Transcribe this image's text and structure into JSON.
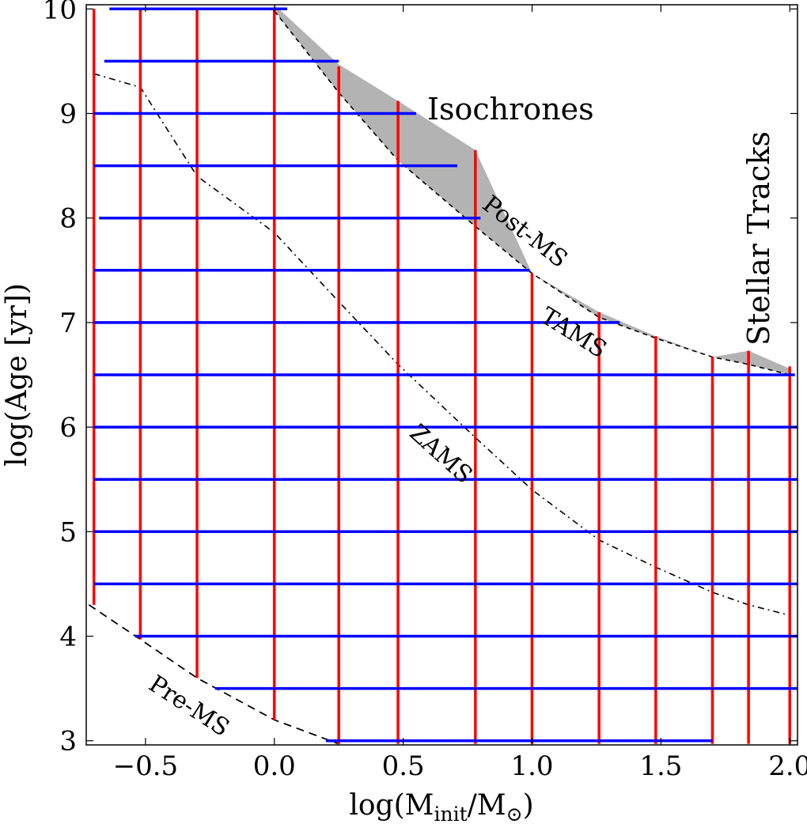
{
  "chart_data": {
    "type": "line",
    "xlabel": "log(M",
    "xlabel_sub": "init",
    "xlabel_mid": "/M",
    "xlabel_sun": "⊙",
    "xlabel_end": ")",
    "ylabel": "log(Age [yr])",
    "xlim": [
      -0.73,
      2.03
    ],
    "ylim": [
      2.96,
      10.04
    ],
    "xticks": [
      -0.5,
      0.0,
      0.5,
      1.0,
      1.5,
      2.0
    ],
    "xtick_labels": [
      "−0.5",
      "0.0",
      "0.5",
      "1.0",
      "1.5",
      "2.0"
    ],
    "yticks": [
      3,
      4,
      5,
      6,
      7,
      8,
      9,
      10
    ],
    "ytick_labels": [
      "3",
      "4",
      "5",
      "6",
      "7",
      "8",
      "9",
      "10"
    ],
    "isochrones": {
      "label": "Isochrones",
      "color": "#0000ff",
      "lines": [
        {
          "age": 10.0,
          "x0": -0.64,
          "x1": 0.05
        },
        {
          "age": 9.5,
          "x0": -0.66,
          "x1": 0.25
        },
        {
          "age": 9.0,
          "x0": -0.7,
          "x1": 0.55
        },
        {
          "age": 8.5,
          "x0": -0.7,
          "x1": 0.71
        },
        {
          "age": 8.0,
          "x0": -0.68,
          "x1": 0.8
        },
        {
          "age": 7.5,
          "x0": -0.7,
          "x1": 0.99
        },
        {
          "age": 7.0,
          "x0": -0.7,
          "x1": 1.34
        },
        {
          "age": 6.5,
          "x0": -0.7,
          "x1": 2.02
        },
        {
          "age": 6.0,
          "x0": -0.7,
          "x1": 2.03
        },
        {
          "age": 5.5,
          "x0": -0.7,
          "x1": 2.03
        },
        {
          "age": 5.0,
          "x0": -0.7,
          "x1": 2.03
        },
        {
          "age": 4.5,
          "x0": -0.7,
          "x1": 2.03
        },
        {
          "age": 4.0,
          "x0": -0.54,
          "x1": 2.03
        },
        {
          "age": 3.5,
          "x0": -0.23,
          "x1": 2.03
        },
        {
          "age": 3.0,
          "x0": 0.2,
          "x1": 1.7
        }
      ]
    },
    "stellar_tracks": {
      "label": "Stellar Tracks",
      "color": "#ff0000",
      "tracks": [
        {
          "mass": -0.7,
          "y0": 4.3,
          "y1": 10.0
        },
        {
          "mass": -0.52,
          "y0": 3.97,
          "y1": 10.0
        },
        {
          "mass": -0.3,
          "y0": 3.6,
          "y1": 10.0
        },
        {
          "mass": 0.0,
          "y0": 3.2,
          "y1": 10.0
        },
        {
          "mass": 0.25,
          "y0": 2.97,
          "y1": 9.45
        },
        {
          "mass": 0.48,
          "y0": 2.97,
          "y1": 9.12
        },
        {
          "mass": 0.78,
          "y0": 2.97,
          "y1": 8.65
        },
        {
          "mass": 1.0,
          "y0": 2.97,
          "y1": 7.47
        },
        {
          "mass": 1.26,
          "y0": 2.97,
          "y1": 7.1
        },
        {
          "mass": 1.48,
          "y0": 2.97,
          "y1": 6.87
        },
        {
          "mass": 1.7,
          "y0": 2.97,
          "y1": 6.67
        },
        {
          "mass": 1.84,
          "y0": 2.97,
          "y1": 6.73
        },
        {
          "mass": 2.0,
          "y0": 2.97,
          "y1": 6.58
        }
      ]
    },
    "post_ms_band": {
      "label": "Post-MS",
      "color": "#b3b3b3",
      "upper": [
        [
          0.0,
          10.04
        ],
        [
          0.25,
          9.47
        ],
        [
          0.48,
          9.12
        ],
        [
          0.78,
          8.65
        ],
        [
          1.0,
          7.47
        ],
        [
          1.26,
          7.1
        ],
        [
          1.48,
          6.87
        ],
        [
          1.7,
          6.67
        ],
        [
          1.84,
          6.73
        ],
        [
          2.0,
          6.56
        ]
      ],
      "lower": [
        [
          2.0,
          6.5
        ],
        [
          1.84,
          6.6
        ],
        [
          1.7,
          6.67
        ],
        [
          1.48,
          6.85
        ],
        [
          1.26,
          7.05
        ],
        [
          1.0,
          7.47
        ],
        [
          0.78,
          7.92
        ],
        [
          0.48,
          8.55
        ],
        [
          0.25,
          9.2
        ],
        [
          0.0,
          9.98
        ]
      ]
    },
    "tams": {
      "label": "TAMS",
      "points": [
        [
          0.0,
          9.98
        ],
        [
          0.25,
          9.2
        ],
        [
          0.48,
          8.55
        ],
        [
          0.78,
          7.92
        ],
        [
          1.0,
          7.47
        ],
        [
          1.26,
          7.05
        ],
        [
          1.48,
          6.85
        ],
        [
          1.7,
          6.67
        ],
        [
          1.84,
          6.6
        ],
        [
          2.0,
          6.5
        ]
      ]
    },
    "zams": {
      "label": "ZAMS",
      "points": [
        [
          -0.7,
          9.38
        ],
        [
          -0.52,
          9.25
        ],
        [
          -0.3,
          8.4
        ],
        [
          0.0,
          7.86
        ],
        [
          0.25,
          7.2
        ],
        [
          0.48,
          6.6
        ],
        [
          0.78,
          5.9
        ],
        [
          1.0,
          5.4
        ],
        [
          1.26,
          4.92
        ],
        [
          1.48,
          4.66
        ],
        [
          1.7,
          4.42
        ],
        [
          1.84,
          4.3
        ],
        [
          2.0,
          4.2
        ]
      ]
    },
    "pre_ms": {
      "label": "Pre-MS",
      "points": [
        [
          -0.72,
          4.3
        ],
        [
          -0.52,
          3.97
        ],
        [
          -0.3,
          3.6
        ],
        [
          0.0,
          3.2
        ],
        [
          0.25,
          2.97
        ]
      ]
    }
  }
}
